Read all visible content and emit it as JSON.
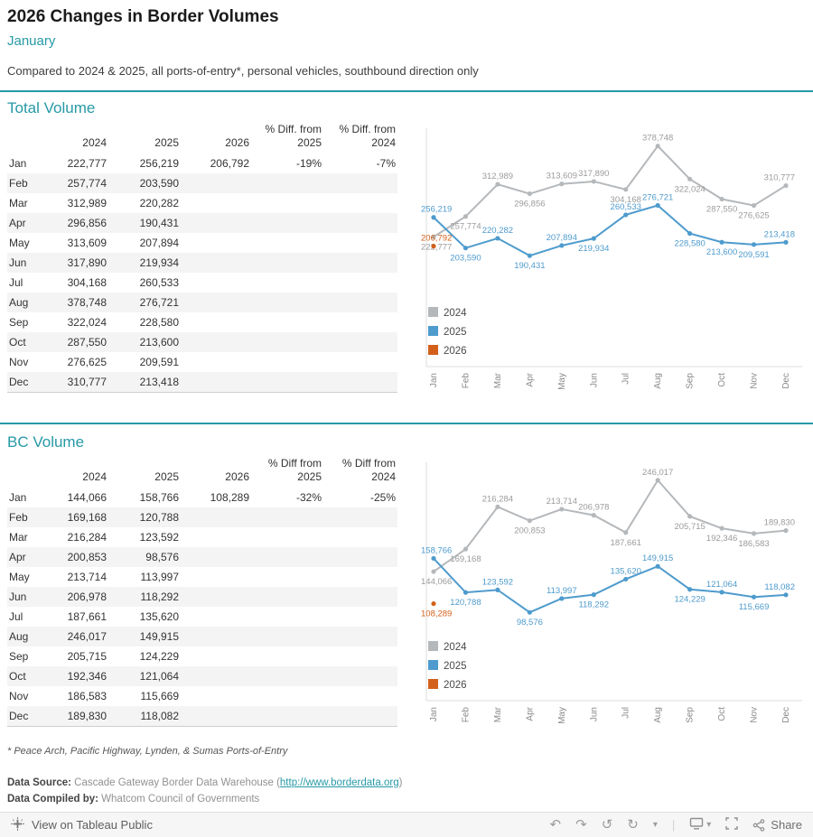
{
  "header": {
    "title": "2026 Changes in Border Volumes",
    "subtitle": "January",
    "description": "Compared to 2024 & 2025, all ports-of-entry*, personal vehicles, southbound direction only"
  },
  "colors": {
    "accent": "#2699A6",
    "series_2024": "#b5b8bb",
    "series_2025": "#4e9bcd",
    "series_2026": "#d2601a"
  },
  "months": [
    "Jan",
    "Feb",
    "Mar",
    "Apr",
    "May",
    "Jun",
    "Jul",
    "Aug",
    "Sep",
    "Oct",
    "Nov",
    "Dec"
  ],
  "sections": [
    {
      "title": "Total Volume",
      "col_headers": [
        "2024",
        "2025",
        "2026",
        "% Diff. from|2025",
        "% Diff. from|2024"
      ],
      "rows": [
        [
          "222,777",
          "256,219",
          "206,792",
          "-19%",
          "-7%"
        ],
        [
          "257,774",
          "203,590",
          "",
          "",
          ""
        ],
        [
          "312,989",
          "220,282",
          "",
          "",
          ""
        ],
        [
          "296,856",
          "190,431",
          "",
          "",
          ""
        ],
        [
          "313,609",
          "207,894",
          "",
          "",
          ""
        ],
        [
          "317,890",
          "219,934",
          "",
          "",
          ""
        ],
        [
          "304,168",
          "260,533",
          "",
          "",
          ""
        ],
        [
          "378,748",
          "276,721",
          "",
          "",
          ""
        ],
        [
          "322,024",
          "228,580",
          "",
          "",
          ""
        ],
        [
          "287,550",
          "213,600",
          "",
          "",
          ""
        ],
        [
          "276,625",
          "209,591",
          "",
          "",
          ""
        ],
        [
          "310,777",
          "213,418",
          "",
          "",
          ""
        ]
      ]
    },
    {
      "title": "BC Volume",
      "col_headers": [
        "2024",
        "2025",
        "2026",
        "% Diff from|2025",
        "% Diff from|2024"
      ],
      "rows": [
        [
          "144,066",
          "158,766",
          "108,289",
          "-32%",
          "-25%"
        ],
        [
          "169,168",
          "120,788",
          "",
          "",
          ""
        ],
        [
          "216,284",
          "123,592",
          "",
          "",
          ""
        ],
        [
          "200,853",
          "98,576",
          "",
          "",
          ""
        ],
        [
          "213,714",
          "113,997",
          "",
          "",
          ""
        ],
        [
          "206,978",
          "118,292",
          "",
          "",
          ""
        ],
        [
          "187,661",
          "135,620",
          "",
          "",
          ""
        ],
        [
          "246,017",
          "149,915",
          "",
          "",
          ""
        ],
        [
          "205,715",
          "124,229",
          "",
          "",
          ""
        ],
        [
          "192,346",
          "121,064",
          "",
          "",
          ""
        ],
        [
          "186,583",
          "115,669",
          "",
          "",
          ""
        ],
        [
          "189,830",
          "118,082",
          "",
          "",
          ""
        ]
      ]
    }
  ],
  "chart_data": [
    {
      "type": "line",
      "title": "Total Volume",
      "x": [
        "Jan",
        "Feb",
        "Mar",
        "Apr",
        "May",
        "Jun",
        "Jul",
        "Aug",
        "Sep",
        "Oct",
        "Nov",
        "Dec"
      ],
      "ylim": [
        0,
        400000
      ],
      "grid": false,
      "legend_position": "inside-left",
      "series": [
        {
          "name": "2024",
          "color": "#b5b8bb",
          "label_color": "#9b9b9b",
          "values": [
            222777,
            257774,
            312989,
            296856,
            313609,
            317890,
            304168,
            378748,
            322024,
            287550,
            276625,
            310777
          ]
        },
        {
          "name": "2025",
          "color": "#4e9bcd",
          "label_color": "#4e9bcd",
          "values": [
            256219,
            203590,
            220282,
            190431,
            207894,
            219934,
            260533,
            276721,
            228580,
            213600,
            209591,
            213418
          ]
        },
        {
          "name": "2026",
          "color": "#d2601a",
          "label_color": "#d2601a",
          "label_side": "above",
          "values": [
            206792,
            null,
            null,
            null,
            null,
            null,
            null,
            null,
            null,
            null,
            null,
            null
          ]
        }
      ]
    },
    {
      "type": "line",
      "title": "BC Volume",
      "x": [
        "Jan",
        "Feb",
        "Mar",
        "Apr",
        "May",
        "Jun",
        "Jul",
        "Aug",
        "Sep",
        "Oct",
        "Nov",
        "Dec"
      ],
      "ylim": [
        0,
        260000
      ],
      "grid": false,
      "legend_position": "inside-left",
      "series": [
        {
          "name": "2024",
          "color": "#b5b8bb",
          "label_color": "#9b9b9b",
          "values": [
            144066,
            169168,
            216284,
            200853,
            213714,
            206978,
            187661,
            246017,
            205715,
            192346,
            186583,
            189830
          ]
        },
        {
          "name": "2025",
          "color": "#4e9bcd",
          "label_color": "#4e9bcd",
          "values": [
            158766,
            120788,
            123592,
            98576,
            113997,
            118292,
            135620,
            149915,
            124229,
            121064,
            115669,
            118082
          ]
        },
        {
          "name": "2026",
          "color": "#d2601a",
          "label_color": "#d2601a",
          "label_side": "below",
          "values": [
            108289,
            null,
            null,
            null,
            null,
            null,
            null,
            null,
            null,
            null,
            null,
            null
          ]
        }
      ]
    }
  ],
  "footnote": "* Peace Arch, Pacific Highway, Lynden, & Sumas Ports-of-Entry",
  "source": {
    "label": "Data Source:",
    "text": "Cascade Gateway Border Data Warehouse (",
    "link": "http://www.borderdata.org",
    "suffix": ")"
  },
  "compiled": {
    "label": "Data Compiled by:",
    "text": "Whatcom Council of Governments"
  },
  "toolbar": {
    "view_label": "View on Tableau Public",
    "share_label": "Share",
    "icons": {
      "undo": "↶",
      "redo": "↷",
      "replay": "↺",
      "forward": "↻",
      "caret": "▾",
      "separator": "|"
    }
  }
}
